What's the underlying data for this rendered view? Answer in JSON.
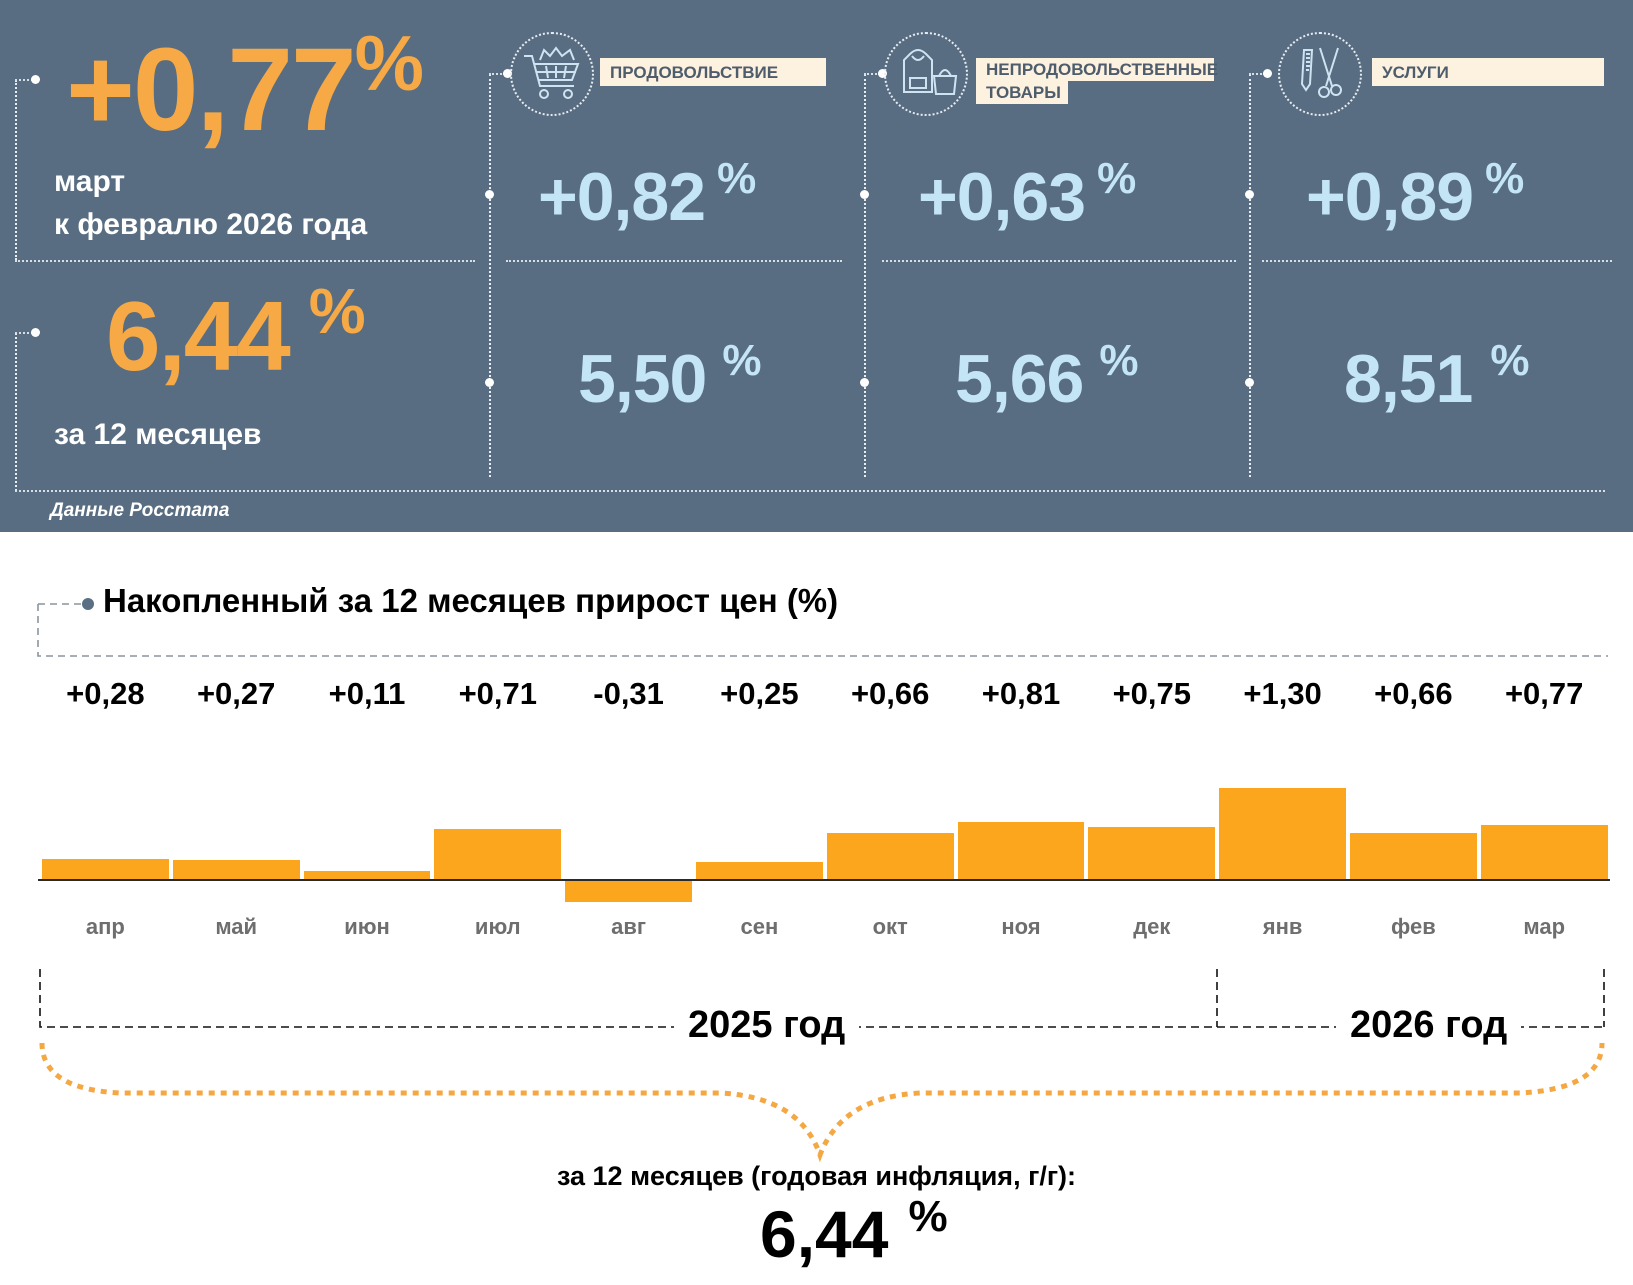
{
  "colors": {
    "panel_bg": "#586d82",
    "accent_orange": "#f6a945",
    "value_blue": "#c4e5f5",
    "badge_bg": "#fdf1e0",
    "bar_color": "#fca61e"
  },
  "monthly": {
    "value": "+0,77",
    "pct": "%",
    "label_line1": "март",
    "label_line2": "к февралю 2026 года"
  },
  "annual": {
    "value": "6,44",
    "pct": "%",
    "label": "за 12 месяцев"
  },
  "categories": [
    {
      "name": "ПРОДОВОЛЬСТВИЕ",
      "icon": "shopping-cart-icon",
      "monthly": "+0,82",
      "annual": "5,50",
      "pct": "%"
    },
    {
      "name_line1": "НЕПРОДОВОЛЬСТВЕННЫЕ",
      "name_line2": "ТОВАРЫ",
      "icon": "hoodie-handbag-icon",
      "monthly": "+0,63",
      "annual": "5,66",
      "pct": "%"
    },
    {
      "name": "УСЛУГИ",
      "icon": "comb-scissors-icon",
      "monthly": "+0,89",
      "annual": "8,51",
      "pct": "%"
    }
  ],
  "source": "Данные Росстата",
  "chart_data": {
    "type": "bar",
    "title": "Накопленный за 12 месяцев прирост цен (%)",
    "categories": [
      "апр",
      "май",
      "июн",
      "июл",
      "авг",
      "сен",
      "окт",
      "ноя",
      "дек",
      "янв",
      "фев",
      "мар"
    ],
    "values": [
      0.28,
      0.27,
      0.11,
      0.71,
      -0.31,
      0.25,
      0.66,
      0.81,
      0.75,
      1.3,
      0.66,
      0.77
    ],
    "value_labels": [
      "+0,28",
      "+0,27",
      "+0,11",
      "+0,71",
      "-0,31",
      "+0,25",
      "+0,66",
      "+0,81",
      "+0,75",
      "+1,30",
      "+0,66",
      "+0,77"
    ],
    "xlabel": "",
    "ylabel": "",
    "ylim": [
      -0.31,
      1.3
    ],
    "grid": false,
    "year_groups": [
      {
        "label": "2025 год",
        "from": "апр",
        "to": "дек"
      },
      {
        "label": "2026 год",
        "from": "янв",
        "to": "мар"
      }
    ]
  },
  "summary": {
    "label": "за 12 месяцев (годовая инфляция, г/г):",
    "value": "6,44",
    "pct": "%"
  }
}
